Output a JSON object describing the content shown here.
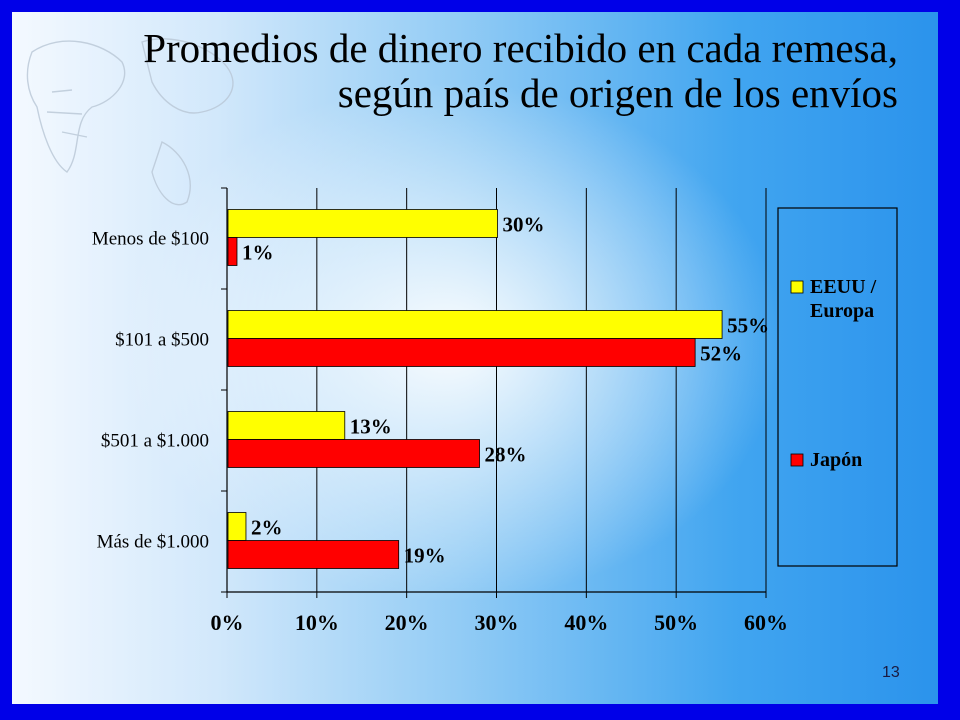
{
  "slide": {
    "title": "Promedios de dinero recibido en cada remesa, según país de origen de los envíos",
    "page_number": "13"
  },
  "colors": {
    "frame": "#0000e8",
    "series_1": "#ffff00",
    "series_2": "#ff0000",
    "grid": "#000000"
  },
  "chart_data": {
    "type": "bar",
    "orientation": "horizontal",
    "title": "Promedios de dinero recibido en cada remesa, según país de origen de los envíos",
    "categories": [
      "Menos de $100",
      "$101 a $500",
      "$501 a $1.000",
      "Más de $1.000"
    ],
    "series": [
      {
        "name": "EEUU / Europa",
        "color": "#ffff00",
        "values": [
          30,
          55,
          13,
          2
        ]
      },
      {
        "name": "Japón",
        "color": "#ff0000",
        "values": [
          1,
          52,
          28,
          19
        ]
      }
    ],
    "data_labels": [
      [
        "30%",
        "55%",
        "13%",
        "2%"
      ],
      [
        "1%",
        "52%",
        "28%",
        "19%"
      ]
    ],
    "xlim": [
      0,
      60
    ],
    "x_ticks": [
      0,
      10,
      20,
      30,
      40,
      50,
      60
    ],
    "x_tick_labels": [
      "0%",
      "10%",
      "20%",
      "30%",
      "40%",
      "50%",
      "60%"
    ],
    "xlabel": "",
    "ylabel": "",
    "grid": "vertical",
    "legend_position": "right"
  }
}
